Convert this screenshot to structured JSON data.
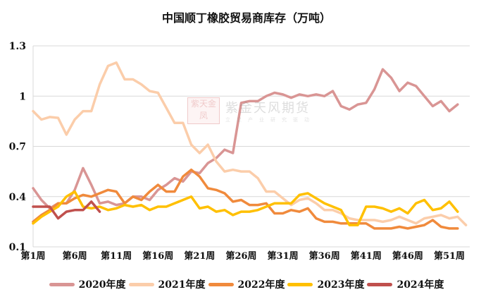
{
  "title": "中国顺丁橡胶贸易商库存（万吨）",
  "watermark": {
    "logo": "紫天金凤",
    "main": "紫金天风期货",
    "sub": "立足产业研究驱动"
  },
  "chart_data": {
    "type": "line",
    "title": "中国顺丁橡胶贸易商库存（万吨）",
    "xlabel": "",
    "ylabel": "",
    "ylim": [
      0.1,
      1.3
    ],
    "yticks": [
      "1.3",
      "1",
      "0.7",
      "0.4",
      "0.1"
    ],
    "ytick_values": [
      1.3,
      1.0,
      0.7,
      0.4,
      0.1
    ],
    "grid": true,
    "legend_position": "bottom",
    "xtick_labels": [
      "第1周",
      "第6周",
      "第11周",
      "第16周",
      "第21周",
      "第26周",
      "第31周",
      "第36周",
      "第41周",
      "第46周",
      "第51周"
    ],
    "xtick_weeks": [
      1,
      6,
      11,
      16,
      21,
      26,
      31,
      36,
      41,
      46,
      51
    ],
    "x": [
      1,
      2,
      3,
      4,
      5,
      6,
      7,
      8,
      9,
      10,
      11,
      12,
      13,
      14,
      15,
      16,
      17,
      18,
      19,
      20,
      21,
      22,
      23,
      24,
      25,
      26,
      27,
      28,
      29,
      30,
      31,
      32,
      33,
      34,
      35,
      36,
      37,
      38,
      39,
      40,
      41,
      42,
      43,
      44,
      45,
      46,
      47,
      48,
      49,
      50,
      51,
      52,
      53
    ],
    "series": [
      {
        "name": "2020年度",
        "color": "#D99594",
        "values": [
          0.45,
          0.38,
          0.33,
          0.36,
          0.36,
          0.44,
          0.57,
          0.47,
          0.36,
          0.37,
          0.35,
          0.36,
          0.4,
          0.4,
          0.38,
          0.44,
          0.47,
          0.51,
          0.49,
          0.55,
          0.54,
          0.6,
          0.63,
          0.68,
          0.66,
          0.96,
          0.97,
          0.97,
          1.0,
          1.02,
          1.01,
          0.99,
          1.01,
          1.0,
          1.01,
          1.0,
          1.03,
          0.94,
          0.92,
          0.95,
          0.96,
          1.04,
          1.16,
          1.11,
          1.03,
          1.08,
          1.06,
          1.0,
          0.94,
          0.97,
          0.91,
          0.95,
          null
        ]
      },
      {
        "name": "2021年度",
        "color": "#FBCDAA",
        "values": [
          0.91,
          0.86,
          0.875,
          0.87,
          0.77,
          0.86,
          0.91,
          0.91,
          1.07,
          1.18,
          1.2,
          1.1,
          1.1,
          1.07,
          1.03,
          1.02,
          0.93,
          0.84,
          0.84,
          0.71,
          0.66,
          0.71,
          0.61,
          0.55,
          0.56,
          0.55,
          0.55,
          0.51,
          0.43,
          0.43,
          0.39,
          0.35,
          0.38,
          0.39,
          0.36,
          0.32,
          0.32,
          0.3,
          0.27,
          0.26,
          0.26,
          0.26,
          0.25,
          0.26,
          0.28,
          0.26,
          0.24,
          0.27,
          0.28,
          0.29,
          0.27,
          0.28,
          0.23
        ]
      },
      {
        "name": "2022年度",
        "color": "#F08A3C",
        "values": [
          0.25,
          0.29,
          0.32,
          0.36,
          0.36,
          0.39,
          0.41,
          0.4,
          0.42,
          0.44,
          0.43,
          0.36,
          0.4,
          0.38,
          0.43,
          0.47,
          0.43,
          0.43,
          0.52,
          0.56,
          0.52,
          0.45,
          0.44,
          0.42,
          0.37,
          0.38,
          0.35,
          0.35,
          0.36,
          0.3,
          0.3,
          0.32,
          0.31,
          0.33,
          0.27,
          0.25,
          0.25,
          0.24,
          0.24,
          0.24,
          0.24,
          0.21,
          0.21,
          0.21,
          0.22,
          0.21,
          0.22,
          0.23,
          0.26,
          0.22,
          0.21,
          0.21,
          null
        ]
      },
      {
        "name": "2023年度",
        "color": "#FFC000",
        "values": [
          0.24,
          0.28,
          0.31,
          0.34,
          0.4,
          0.43,
          0.34,
          0.33,
          0.34,
          0.32,
          0.33,
          0.35,
          0.34,
          0.35,
          0.32,
          0.34,
          0.34,
          0.36,
          0.38,
          0.4,
          0.33,
          0.34,
          0.31,
          0.32,
          0.29,
          0.31,
          0.31,
          0.32,
          0.34,
          0.36,
          0.36,
          0.36,
          0.41,
          0.42,
          0.39,
          0.36,
          0.34,
          0.32,
          0.23,
          0.23,
          0.34,
          0.34,
          0.33,
          0.31,
          0.33,
          0.3,
          0.36,
          0.38,
          0.32,
          0.33,
          0.37,
          0.31,
          null
        ]
      },
      {
        "name": "2024年度",
        "color": "#C0504D",
        "values": [
          0.34,
          0.34,
          0.34,
          0.27,
          0.31,
          0.32,
          0.32,
          0.37,
          0.31,
          null,
          null,
          null,
          null,
          null,
          null,
          null,
          null,
          null,
          null,
          null,
          null,
          null,
          null,
          null,
          null,
          null,
          null,
          null,
          null,
          null,
          null,
          null,
          null,
          null,
          null,
          null,
          null,
          null,
          null,
          null,
          null,
          null,
          null,
          null,
          null,
          null,
          null,
          null,
          null,
          null,
          null,
          null,
          null
        ]
      }
    ]
  }
}
